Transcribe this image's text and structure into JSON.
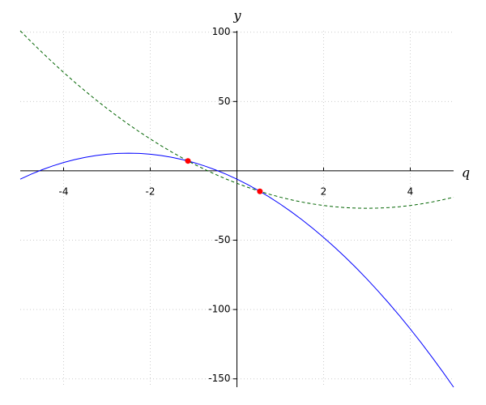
{
  "chart_data": {
    "type": "line",
    "x_label": "q",
    "y_label": "y",
    "xlim": [
      -5,
      5
    ],
    "ylim": [
      -156,
      101
    ],
    "xticks": [
      -4,
      -2,
      2,
      4
    ],
    "yticks": [
      -150,
      -100,
      -50,
      50,
      100
    ],
    "grid": true,
    "x": [
      -5,
      -4.75,
      -4.5,
      -4.25,
      -4,
      -3.75,
      -3.5,
      -3.25,
      -3,
      -2.75,
      -2.5,
      -2.25,
      -2,
      -1.75,
      -1.5,
      -1.25,
      -1,
      -0.75,
      -0.5,
      -0.25,
      0,
      0.25,
      0.5,
      0.75,
      1,
      1.25,
      1.5,
      1.75,
      2,
      2.25,
      2.5,
      2.75,
      3,
      3.25,
      3.5,
      3.75,
      4,
      4.25,
      4.5,
      4.75,
      5
    ],
    "series": [
      {
        "color": "#0000ff",
        "dashed": false,
        "values": [
          -6,
          -2.4375,
          0.75,
          3.5625,
          6,
          8.0625,
          9.75,
          11.0625,
          12,
          12.5625,
          12.75,
          12.5625,
          12,
          11.0625,
          9.75,
          8.0625,
          6,
          3.5625,
          0.75,
          -2.4375,
          -6,
          -9.9375,
          -14.25,
          -18.9375,
          -24,
          -29.4375,
          -35.25,
          -41.4375,
          -48,
          -54.9375,
          -62.25,
          -69.9375,
          -78,
          -86.4375,
          -95.25,
          -104.4375,
          -114,
          -123.9375,
          -134.25,
          -144.9375,
          -156
        ]
      },
      {
        "color": "#006400",
        "dashed": true,
        "values": [
          101,
          93.125,
          85.5,
          78.125,
          71,
          64.125,
          57.5,
          51.125,
          45,
          39.125,
          33.5,
          28.125,
          23,
          18.125,
          13.5,
          9.125,
          5,
          1.125,
          -2.5,
          -5.875,
          -9,
          -11.875,
          -14.5,
          -16.875,
          -19,
          -20.875,
          -22.5,
          -23.875,
          -25,
          -25.875,
          -26.5,
          -26.875,
          -27,
          -26.875,
          -26.5,
          -25.875,
          -25,
          -23.875,
          -22.5,
          -20.875,
          -19
        ]
      }
    ],
    "points": {
      "color": "#ff0000",
      "x": [
        -1.13,
        0.53
      ],
      "y": [
        7.13,
        -14.8
      ]
    }
  }
}
